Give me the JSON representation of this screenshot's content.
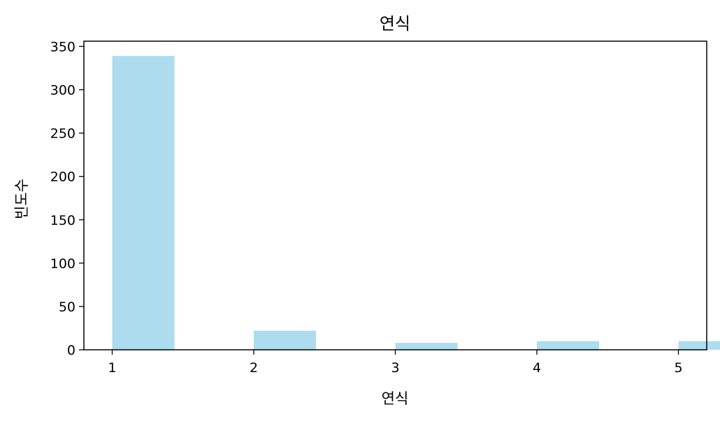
{
  "chart_data": {
    "type": "bar",
    "title": "연식",
    "xlabel": "연식",
    "ylabel": "빈도수",
    "x": [
      1,
      2,
      3,
      4,
      5
    ],
    "values": [
      339,
      22,
      8,
      10,
      10
    ],
    "xlim": [
      0.8,
      5.2
    ],
    "ylim": [
      0,
      356
    ],
    "xticks": [
      1,
      2,
      3,
      4,
      5
    ],
    "yticks": [
      0,
      50,
      100,
      150,
      200,
      250,
      300,
      350
    ],
    "bar_width": 0.44,
    "bar_color": "#ADDCEE",
    "grid": false,
    "legend": "none"
  }
}
